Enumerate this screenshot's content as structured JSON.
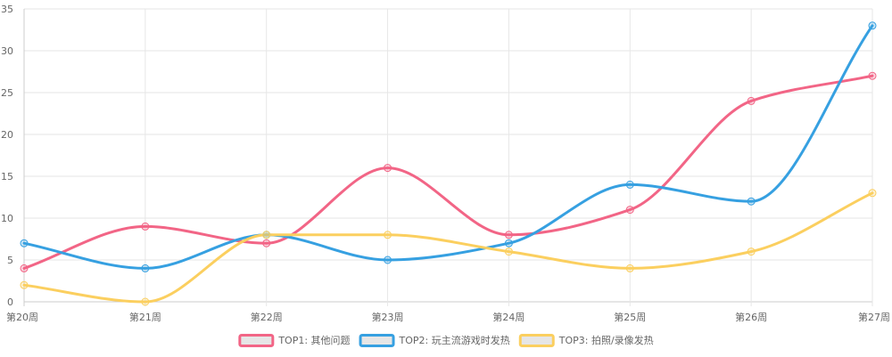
{
  "chart_data": {
    "type": "line",
    "categories": [
      "第20周",
      "第21周",
      "第22周",
      "第23周",
      "第24周",
      "第25周",
      "第26周",
      "第27周"
    ],
    "series": [
      {
        "name": "TOP1: 其他问题",
        "values": [
          4,
          9,
          7,
          16,
          8,
          11,
          24,
          27
        ],
        "color": "#f26586"
      },
      {
        "name": "TOP2: 玩主流游戏时发热",
        "values": [
          7,
          4,
          8,
          5,
          7,
          14,
          12,
          33
        ],
        "color": "#36a0e1"
      },
      {
        "name": "TOP3: 拍照/录像发热",
        "values": [
          2,
          0,
          8,
          8,
          6,
          4,
          6,
          13
        ],
        "color": "#fbcf5f"
      }
    ],
    "ylim": [
      0,
      35
    ],
    "yticks": [
      0,
      5,
      10,
      15,
      20,
      25,
      30,
      35
    ],
    "grid": true,
    "legend_position": "bottom",
    "smooth": true
  }
}
